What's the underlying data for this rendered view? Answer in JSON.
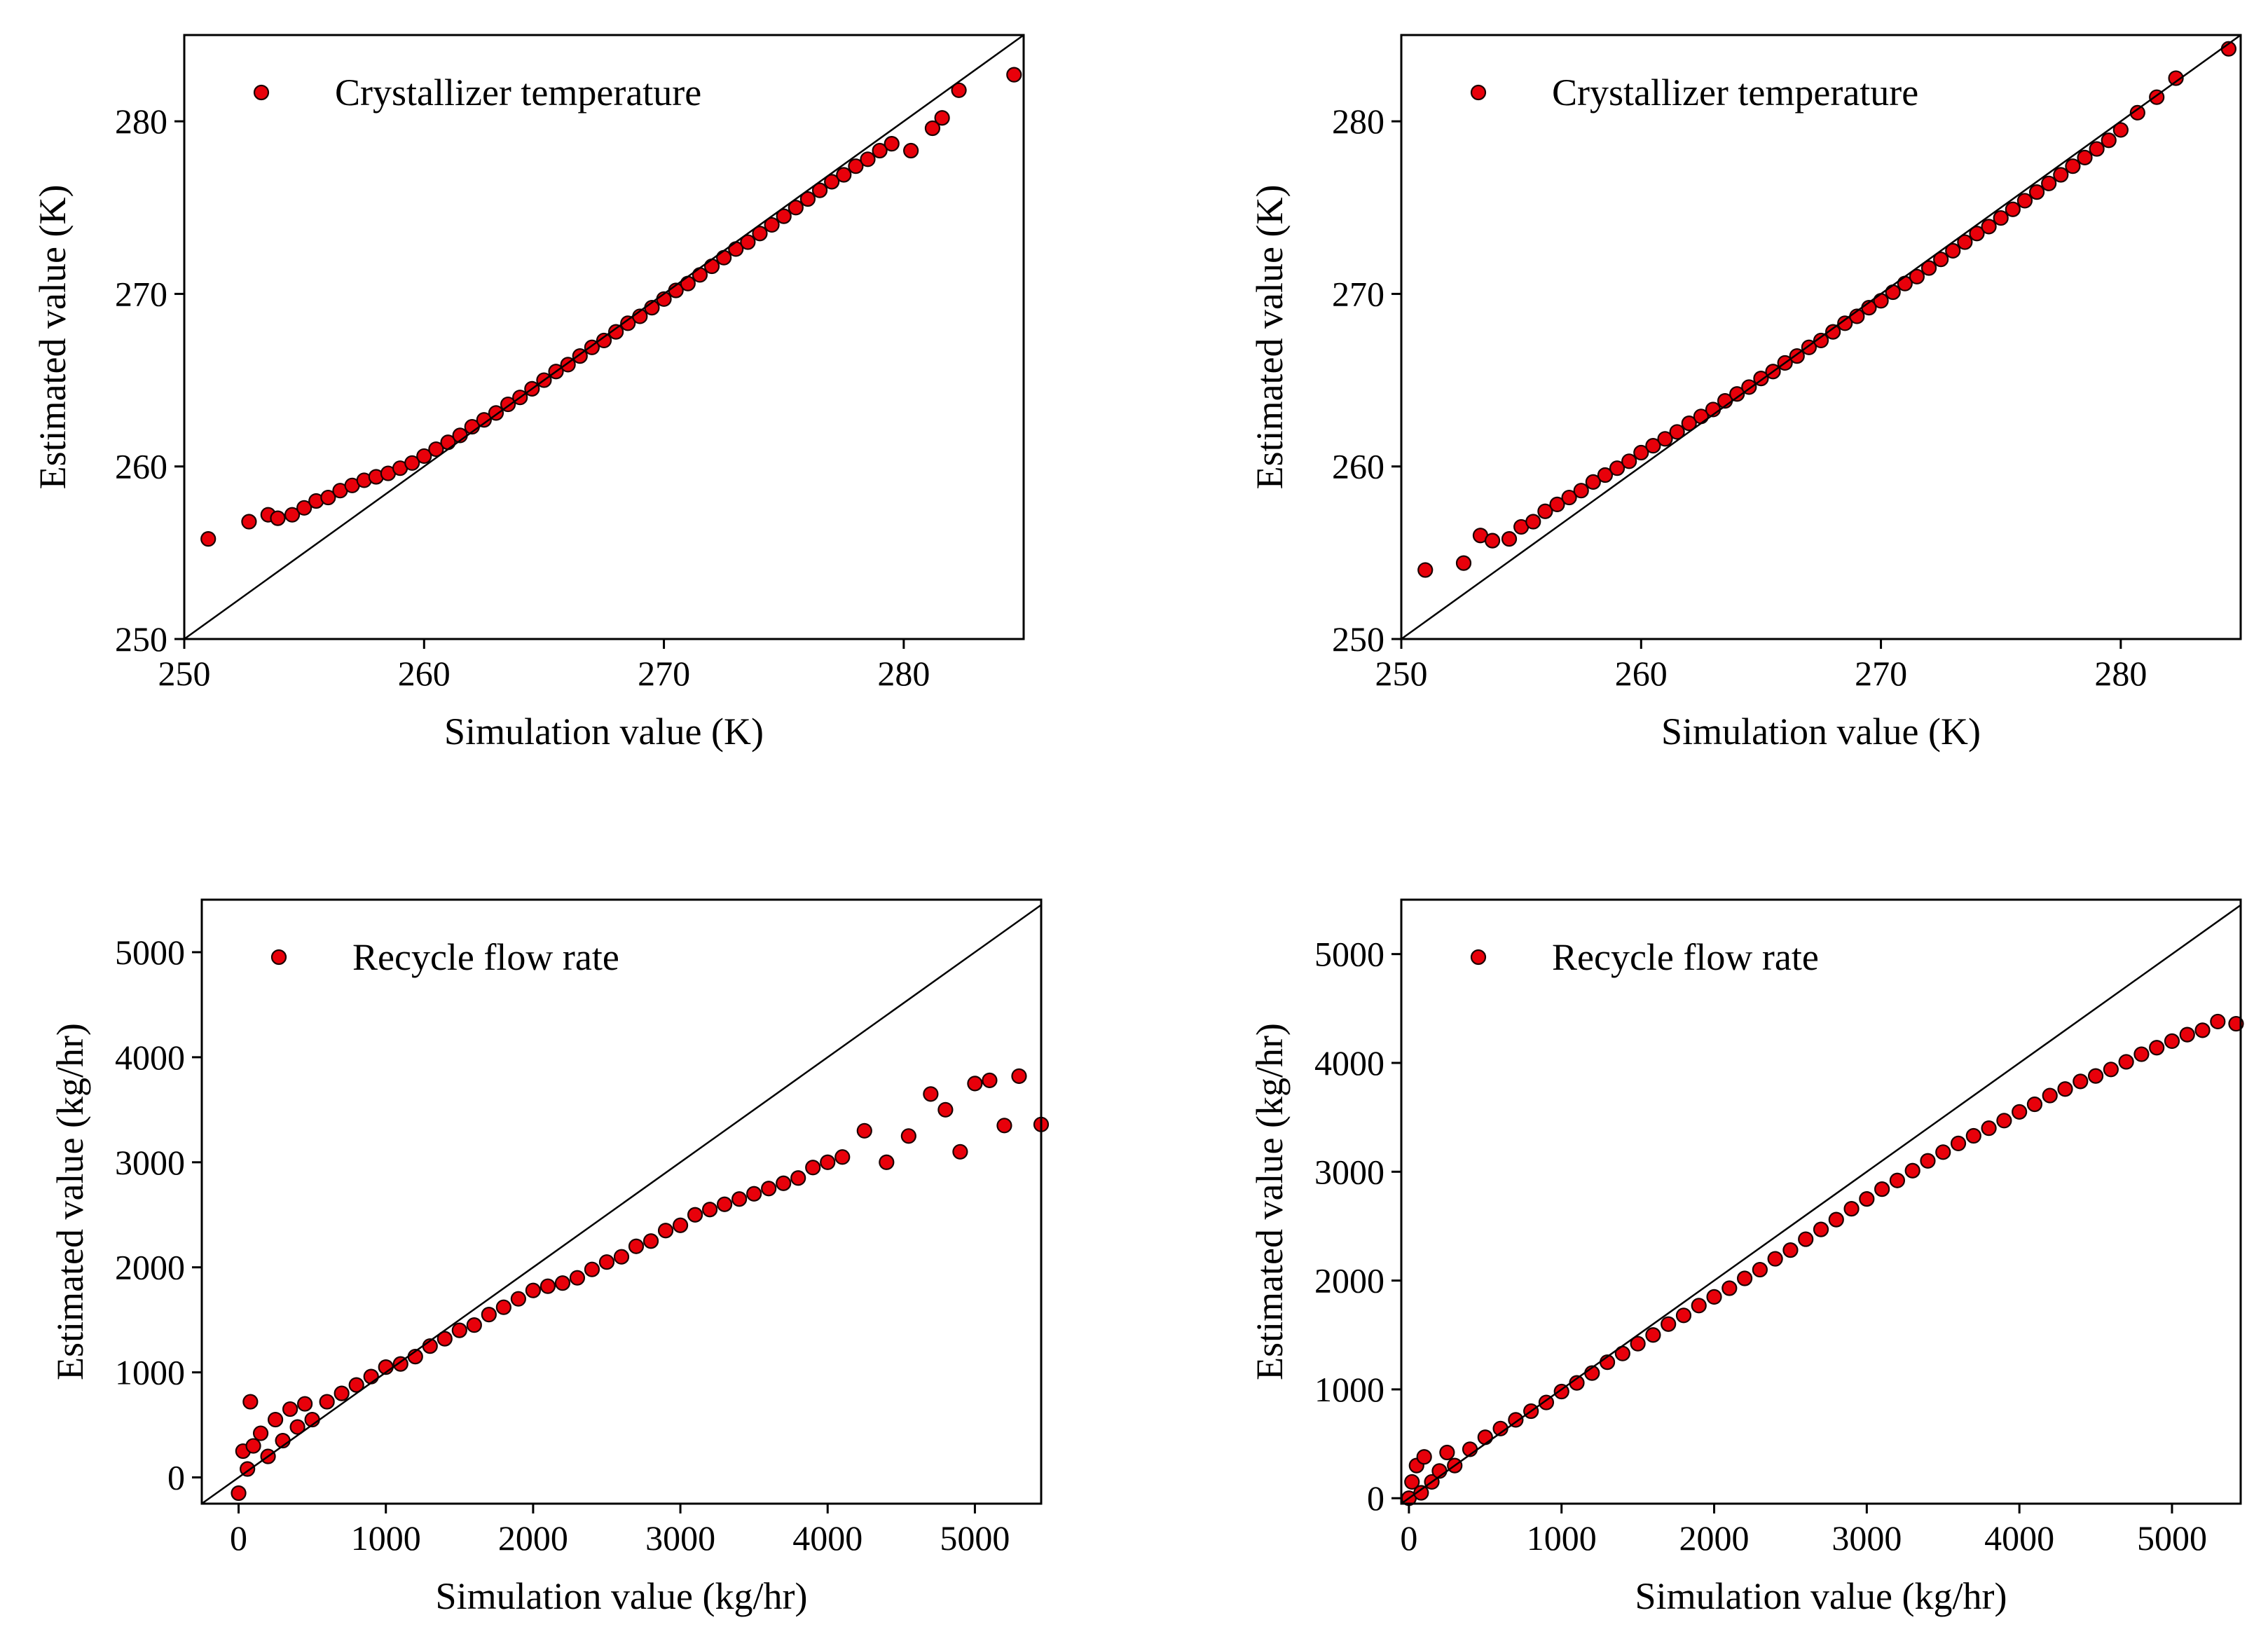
{
  "chart_data": [
    {
      "id": "p1",
      "type": "scatter",
      "title": "",
      "legend": "Crystallizer temperature",
      "legend_position": "top-left",
      "xlabel": "Simulation value (K)",
      "ylabel": "Estimated value (K)",
      "xlim": [
        250,
        285
      ],
      "ylim": [
        250,
        285
      ],
      "xticks": [
        250,
        260,
        270,
        280
      ],
      "yticks": [
        250,
        260,
        270,
        280
      ],
      "reference_line": "y = x",
      "colors": {
        "marker": "#e8000a",
        "edge": "#1a0000"
      },
      "series": [
        {
          "name": "Crystallizer temperature",
          "x": [
            251.0,
            252.7,
            253.5,
            253.9,
            254.5,
            255.0,
            255.5,
            256.0,
            256.5,
            257.0,
            257.5,
            258.0,
            258.5,
            259.0,
            259.5,
            260.0,
            260.5,
            261.0,
            261.5,
            262.0,
            262.5,
            263.0,
            263.5,
            264.0,
            264.5,
            265.0,
            265.5,
            266.0,
            266.5,
            267.0,
            267.5,
            268.0,
            268.5,
            269.0,
            269.5,
            270.0,
            270.5,
            271.0,
            271.5,
            272.0,
            272.5,
            273.0,
            273.5,
            274.0,
            274.5,
            275.0,
            275.5,
            276.0,
            276.5,
            277.0,
            277.5,
            278.0,
            278.5,
            279.0,
            279.5,
            280.3,
            281.2,
            281.6,
            282.3,
            284.6
          ],
          "y": [
            255.8,
            256.8,
            257.2,
            257.0,
            257.2,
            257.6,
            258.0,
            258.2,
            258.6,
            258.9,
            259.2,
            259.4,
            259.6,
            259.9,
            260.2,
            260.6,
            261.0,
            261.4,
            261.8,
            262.3,
            262.7,
            263.1,
            263.6,
            264.0,
            264.5,
            265.0,
            265.5,
            265.9,
            266.4,
            266.9,
            267.3,
            267.8,
            268.3,
            268.7,
            269.2,
            269.7,
            270.2,
            270.6,
            271.1,
            271.6,
            272.1,
            272.6,
            273.0,
            273.5,
            274.0,
            274.5,
            275.0,
            275.5,
            276.0,
            276.5,
            276.9,
            277.4,
            277.8,
            278.3,
            278.7,
            278.3,
            279.6,
            280.2,
            281.8,
            282.7
          ]
        }
      ]
    },
    {
      "id": "p2",
      "type": "scatter",
      "title": "",
      "legend": "Crystallizer temperature",
      "legend_position": "top-left",
      "xlabel": "Simulation value (K)",
      "ylabel": "Estimated value (K)",
      "xlim": [
        250,
        285
      ],
      "ylim": [
        250,
        285
      ],
      "xticks": [
        250,
        260,
        270,
        280
      ],
      "yticks": [
        250,
        260,
        270,
        280
      ],
      "reference_line": "y = x",
      "colors": {
        "marker": "#e8000a",
        "edge": "#1a0000"
      },
      "series": [
        {
          "name": "Crystallizer temperature",
          "x": [
            251.0,
            252.6,
            253.3,
            253.8,
            254.5,
            255.0,
            255.5,
            256.0,
            256.5,
            257.0,
            257.5,
            258.0,
            258.5,
            259.0,
            259.5,
            260.0,
            260.5,
            261.0,
            261.5,
            262.0,
            262.5,
            263.0,
            263.5,
            264.0,
            264.5,
            265.0,
            265.5,
            266.0,
            266.5,
            267.0,
            267.5,
            268.0,
            268.5,
            269.0,
            269.5,
            270.0,
            270.5,
            271.0,
            271.5,
            272.0,
            272.5,
            273.0,
            273.5,
            274.0,
            274.5,
            275.0,
            275.5,
            276.0,
            276.5,
            277.0,
            277.5,
            278.0,
            278.5,
            279.0,
            279.5,
            280.0,
            280.7,
            281.5,
            282.3,
            284.5
          ],
          "y": [
            254.0,
            254.4,
            256.0,
            255.7,
            255.8,
            256.5,
            256.8,
            257.4,
            257.8,
            258.2,
            258.6,
            259.1,
            259.5,
            259.9,
            260.3,
            260.8,
            261.2,
            261.6,
            262.0,
            262.5,
            262.9,
            263.3,
            263.8,
            264.2,
            264.6,
            265.1,
            265.5,
            266.0,
            266.4,
            266.9,
            267.3,
            267.8,
            268.3,
            268.7,
            269.2,
            269.6,
            270.1,
            270.6,
            271.0,
            271.5,
            272.0,
            272.5,
            273.0,
            273.5,
            273.9,
            274.4,
            274.9,
            275.4,
            275.9,
            276.4,
            276.9,
            277.4,
            277.9,
            278.4,
            278.9,
            279.5,
            280.5,
            281.4,
            282.5,
            284.2
          ]
        }
      ]
    },
    {
      "id": "p3",
      "type": "scatter",
      "title": "",
      "legend": "Recycle flow rate",
      "legend_position": "top-left",
      "xlabel": "Simulation value (kg/hr)",
      "ylabel": "Estimated value (kg/hr)",
      "xlim": [
        -250,
        5450
      ],
      "ylim": [
        -250,
        5500
      ],
      "xticks": [
        0,
        1000,
        2000,
        3000,
        4000,
        5000
      ],
      "yticks": [
        0,
        1000,
        2000,
        3000,
        4000,
        5000
      ],
      "reference_line": "y = x",
      "colors": {
        "marker": "#e8000a",
        "edge": "#1a0000"
      },
      "series": [
        {
          "name": "Recycle flow rate",
          "x": [
            0,
            30,
            60,
            80,
            100,
            150,
            200,
            250,
            300,
            350,
            400,
            450,
            500,
            600,
            700,
            800,
            900,
            1000,
            1100,
            1200,
            1300,
            1400,
            1500,
            1600,
            1700,
            1800,
            1900,
            2000,
            2100,
            2200,
            2300,
            2400,
            2500,
            2600,
            2700,
            2800,
            2900,
            3000,
            3100,
            3200,
            3300,
            3400,
            3500,
            3600,
            3700,
            3800,
            3900,
            4000,
            4100,
            4250,
            4400,
            4550,
            4700,
            4800,
            4900,
            5000,
            5100,
            5200,
            5300,
            5450
          ],
          "y": [
            -150,
            250,
            80,
            720,
            300,
            420,
            200,
            550,
            350,
            650,
            480,
            700,
            550,
            720,
            800,
            880,
            960,
            1050,
            1080,
            1150,
            1250,
            1320,
            1400,
            1450,
            1550,
            1620,
            1700,
            1780,
            1820,
            1850,
            1900,
            1980,
            2050,
            2100,
            2200,
            2250,
            2350,
            2400,
            2500,
            2550,
            2600,
            2650,
            2700,
            2750,
            2800,
            2850,
            2950,
            3000,
            3050,
            3300,
            3000,
            3250,
            3650,
            3500,
            3100,
            3750,
            3780,
            3350,
            3820,
            3360
          ]
        }
      ]
    },
    {
      "id": "p4",
      "type": "scatter",
      "title": "",
      "legend": "Recycle flow rate",
      "legend_position": "top-left",
      "xlabel": "Simulation value (kg/hr)",
      "ylabel": "Estimated value (kg/hr)",
      "xlim": [
        -50,
        5450
      ],
      "ylim": [
        -50,
        5500
      ],
      "xticks": [
        0,
        1000,
        2000,
        3000,
        4000,
        5000
      ],
      "yticks": [
        0,
        1000,
        2000,
        3000,
        4000,
        5000
      ],
      "reference_line": "y = x",
      "colors": {
        "marker": "#e8000a",
        "edge": "#1a0000"
      },
      "series": [
        {
          "name": "Recycle flow rate",
          "x": [
            0,
            20,
            50,
            80,
            100,
            150,
            200,
            250,
            300,
            400,
            500,
            600,
            700,
            800,
            900,
            1000,
            1100,
            1200,
            1300,
            1400,
            1500,
            1600,
            1700,
            1800,
            1900,
            2000,
            2100,
            2200,
            2300,
            2400,
            2500,
            2600,
            2700,
            2800,
            2900,
            3000,
            3100,
            3200,
            3300,
            3400,
            3500,
            3600,
            3700,
            3800,
            3900,
            4000,
            4100,
            4200,
            4300,
            4400,
            4500,
            4600,
            4700,
            4800,
            4900,
            5000,
            5100,
            5200,
            5300,
            5420
          ],
          "y": [
            0,
            150,
            300,
            50,
            380,
            150,
            250,
            420,
            300,
            450,
            560,
            640,
            720,
            800,
            880,
            980,
            1060,
            1150,
            1250,
            1330,
            1420,
            1500,
            1600,
            1680,
            1770,
            1850,
            1930,
            2020,
            2100,
            2200,
            2280,
            2380,
            2470,
            2560,
            2660,
            2750,
            2840,
            2920,
            3010,
            3100,
            3180,
            3260,
            3330,
            3400,
            3470,
            3550,
            3620,
            3700,
            3760,
            3830,
            3880,
            3940,
            4010,
            4080,
            4140,
            4200,
            4260,
            4300,
            4380,
            4360
          ]
        }
      ]
    }
  ]
}
